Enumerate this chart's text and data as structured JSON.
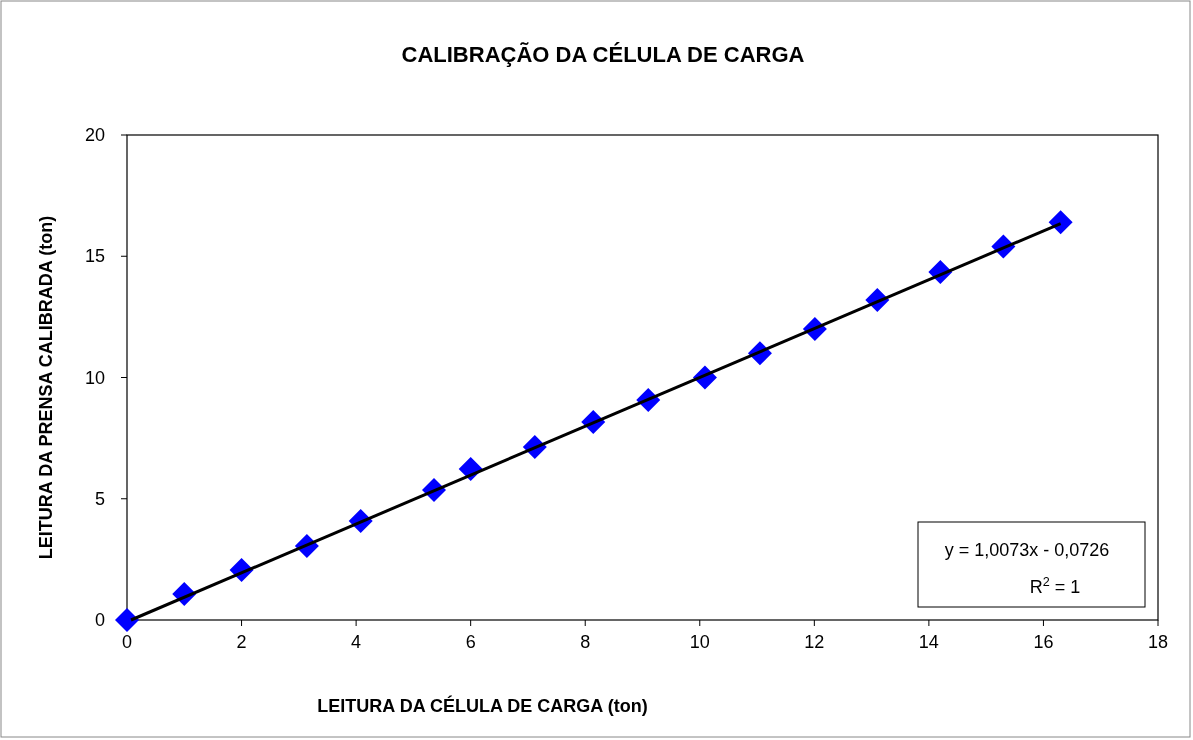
{
  "chart_data": {
    "type": "scatter",
    "title": "CALIBRAÇÃO DA CÉLULA DE CARGA",
    "xlabel": "LEITURA DA CÉLULA DE CARGA (ton)",
    "ylabel": "LEITURA DA PRENSA CALIBRADA (ton)",
    "xlim": [
      0,
      18
    ],
    "xticks": [
      0,
      2,
      4,
      6,
      8,
      10,
      12,
      14,
      16,
      18
    ],
    "ylim": [
      0,
      20
    ],
    "yticks": [
      0,
      5,
      10,
      15,
      20
    ],
    "grid": false,
    "marker": "diamond",
    "series": [
      {
        "color": "#0000ff",
        "x": [
          0,
          1.0,
          2.0,
          3.14,
          4.08,
          5.36,
          6.0,
          7.12,
          8.14,
          9.1,
          10.09,
          11.05,
          12.01,
          13.1,
          14.2,
          15.3,
          16.3
        ],
        "values": [
          0,
          1.07,
          2.06,
          3.05,
          4.08,
          5.36,
          6.23,
          7.13,
          8.16,
          9.07,
          10.0,
          11.0,
          12.0,
          13.2,
          14.35,
          15.4,
          16.4
        ]
      },
      {
        "type": "line",
        "color": "#000000",
        "line_style": "solid",
        "marker": "none",
        "x": [
          0.07,
          16.3
        ],
        "values": [
          0,
          16.35
        ]
      }
    ],
    "annotations": [
      "y = 1,0073x - 0,0726",
      "R$^{2}$ = 1"
    ]
  }
}
